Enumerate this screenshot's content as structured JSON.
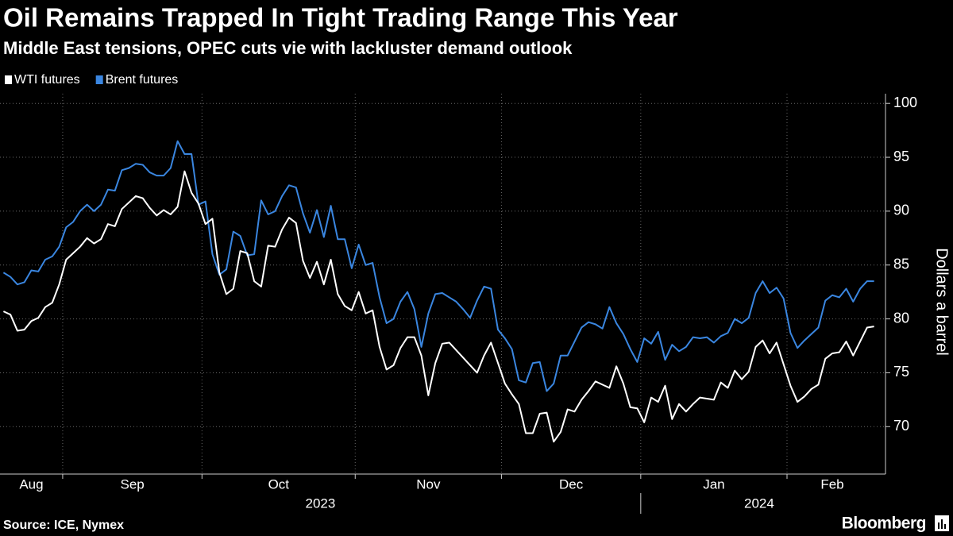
{
  "chart_data": {
    "type": "line",
    "title": "Oil Remains Trapped In Tight Trading Range This Year",
    "subtitle": "Middle East tensions, OPEC cuts vie with lackluster demand outlook",
    "y_axis_label": "Dollars a barrel",
    "source": "Source: ICE, Nymex",
    "brand": "Bloomberg",
    "year_labels": [
      "2023",
      "2024"
    ],
    "categories": [
      "Aug",
      null,
      null,
      null,
      null,
      null,
      null,
      null,
      null,
      "Sep",
      null,
      null,
      null,
      null,
      null,
      null,
      null,
      null,
      null,
      null,
      null,
      null,
      null,
      null,
      null,
      null,
      null,
      null,
      null,
      "Oct",
      null,
      null,
      null,
      null,
      null,
      null,
      null,
      null,
      null,
      null,
      null,
      null,
      null,
      null,
      null,
      null,
      null,
      null,
      null,
      null,
      null,
      "Nov",
      null,
      null,
      null,
      null,
      null,
      null,
      null,
      null,
      null,
      null,
      null,
      null,
      null,
      null,
      null,
      null,
      null,
      null,
      null,
      null,
      "Dec",
      null,
      null,
      null,
      null,
      null,
      null,
      null,
      null,
      null,
      null,
      null,
      null,
      null,
      null,
      null,
      null,
      null,
      null,
      null,
      "Jan",
      null,
      null,
      null,
      null,
      null,
      null,
      null,
      null,
      null,
      null,
      null,
      null,
      null,
      null,
      null,
      null,
      null,
      null,
      null,
      null,
      "Feb",
      null,
      null,
      null,
      null,
      null,
      null,
      null,
      null,
      null,
      null,
      null,
      null
    ],
    "series": [
      {
        "name": "WTI futures",
        "color": "#ffffff",
        "values": [
          80.7,
          80.4,
          78.9,
          79,
          79.8,
          80.1,
          81.1,
          81.5,
          83.2,
          85.5,
          86.1,
          86.7,
          87.5,
          87,
          87.4,
          88.8,
          88.6,
          90.2,
          90.8,
          91.4,
          91.2,
          90.3,
          89.6,
          90.1,
          89.7,
          90.4,
          93.7,
          91.7,
          90.7,
          88.8,
          89.3,
          84.3,
          82.3,
          82.8,
          86.3,
          86.1,
          83.5,
          83,
          86.8,
          86.7,
          88.3,
          89.4,
          88.9,
          85.4,
          83.8,
          85.3,
          83.2,
          85.5,
          82.3,
          81.2,
          80.8,
          82.5,
          80.5,
          80.8,
          77.4,
          75.3,
          75.7,
          77.3,
          78.3,
          78.3,
          76.6,
          72.9,
          75.9,
          77.7,
          77.8,
          77.1,
          76.4,
          75.7,
          75,
          76.6,
          77.8,
          75.9,
          74,
          73,
          72.1,
          69.4,
          69.4,
          71.2,
          71.3,
          68.6,
          69.5,
          71.6,
          71.4,
          72.5,
          73.3,
          74.2,
          73.9,
          73.6,
          75.6,
          74,
          71.8,
          71.7,
          70.4,
          72.7,
          72.3,
          73.8,
          70.7,
          72.1,
          71.4,
          72.1,
          72.7,
          72.6,
          72.5,
          74.1,
          73.6,
          75.2,
          74.4,
          75.1,
          77.4,
          78,
          76.8,
          77.8,
          75.8,
          73.8,
          72.3,
          72.8,
          73.5,
          73.9,
          76.3,
          76.8,
          76.9,
          77.9,
          76.6,
          77.9,
          79.2,
          79.3
        ]
      },
      {
        "name": "Brent futures",
        "color": "#3a86e0",
        "values": [
          84.3,
          83.9,
          83.2,
          83.4,
          84.5,
          84.4,
          85.5,
          85.8,
          86.7,
          88.5,
          89,
          90,
          90.6,
          90,
          90.6,
          92,
          91.9,
          93.8,
          94,
          94.4,
          94.3,
          93.6,
          93.3,
          93.3,
          94,
          96.5,
          95.3,
          95.3,
          90.6,
          90.9,
          86,
          84.1,
          84.6,
          88.1,
          87.7,
          85.9,
          86,
          91,
          89.7,
          90,
          91.4,
          92.4,
          92.2,
          89.8,
          88,
          90.1,
          87.6,
          90.5,
          87.4,
          87.4,
          84.7,
          86.9,
          85,
          85.2,
          82,
          79.6,
          80,
          81.6,
          82.5,
          80.9,
          77.4,
          80.5,
          82.3,
          82.4,
          82,
          81.6,
          80.9,
          80.1,
          81.7,
          83,
          82.8,
          79,
          78.2,
          77.2,
          74.3,
          74.1,
          75.9,
          76,
          73.3,
          74,
          76.6,
          76.6,
          77.9,
          79.2,
          79.7,
          79.5,
          79.1,
          81.1,
          79.6,
          78.6,
          77.2,
          76,
          78.2,
          77.7,
          78.8,
          76.2,
          77.6,
          77,
          77.4,
          78.3,
          78.2,
          78.3,
          77.8,
          78.4,
          78.7,
          80,
          79.6,
          80.1,
          82.4,
          83.5,
          82.4,
          82.9,
          81.9,
          78.7,
          77.3,
          78,
          78.6,
          79.2,
          81.7,
          82.2,
          82,
          82.8,
          81.6,
          82.8,
          83.5,
          83.5
        ]
      }
    ],
    "ylim": [
      65.6,
      100.9
    ],
    "yticks": [
      70,
      75,
      80,
      85,
      90,
      95,
      100
    ],
    "grid": true
  }
}
